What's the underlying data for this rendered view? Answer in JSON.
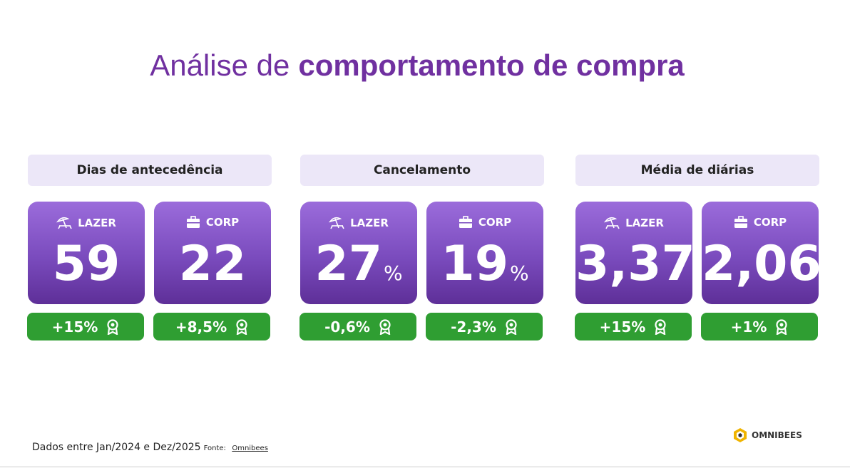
{
  "header": {
    "title_light": "Análise de",
    "title_bold": "comportamento de compra"
  },
  "groups": [
    {
      "label": "Dias de antecedência",
      "cards": [
        {
          "segment": "LAZER",
          "value": "59",
          "change": "+15%"
        },
        {
          "segment": "CORP",
          "value": "22",
          "change": "+8,5%"
        }
      ]
    },
    {
      "label": "Cancelamento",
      "cards": [
        {
          "segment": "LAZER",
          "value": "27",
          "unit": "%",
          "change": "-0,6%"
        },
        {
          "segment": "CORP",
          "value": "19",
          "unit": "%",
          "change": "-2,3%"
        }
      ]
    },
    {
      "label": "Média de diárias",
      "cards": [
        {
          "segment": "LAZER",
          "value": "3,37",
          "change": "+15%"
        },
        {
          "segment": "CORP",
          "value": "2,06",
          "change": "+1%"
        }
      ]
    }
  ],
  "footer": {
    "note": "Dados entre Jan/2024 e Dez/2025",
    "source_label": "Fonte:",
    "source": "Omnibees",
    "logo": "OMNIBEES"
  }
}
